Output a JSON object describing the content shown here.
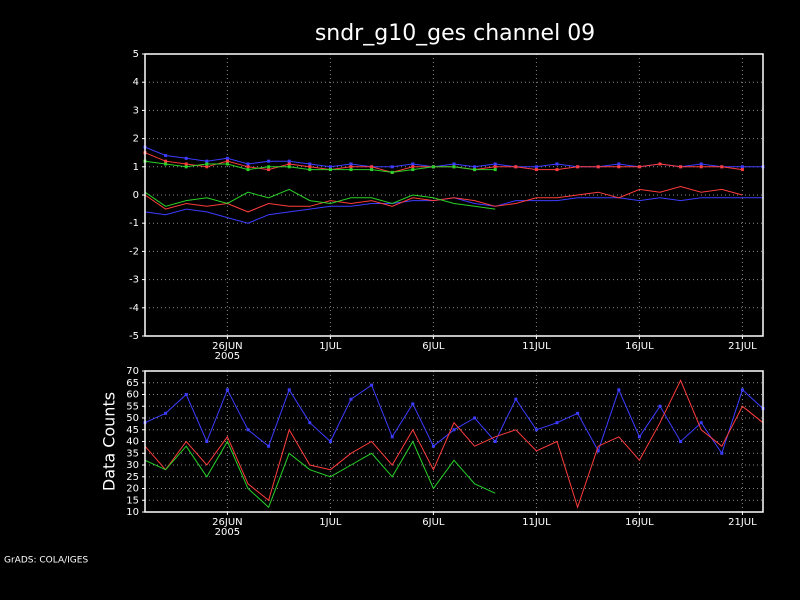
{
  "chart_data": [
    {
      "type": "line",
      "title": "sndr_g10_ges channel 09",
      "grid": true,
      "x_sublabel": "2005",
      "x": [
        "2005-06-22",
        "2005-06-23",
        "2005-06-24",
        "2005-06-25",
        "2005-06-26",
        "2005-06-27",
        "2005-06-28",
        "2005-06-29",
        "2005-06-30",
        "2005-07-01",
        "2005-07-02",
        "2005-07-03",
        "2005-07-04",
        "2005-07-05",
        "2005-07-06",
        "2005-07-07",
        "2005-07-08",
        "2005-07-09",
        "2005-07-10",
        "2005-07-11",
        "2005-07-12",
        "2005-07-13",
        "2005-07-14",
        "2005-07-15",
        "2005-07-16",
        "2005-07-17",
        "2005-07-18",
        "2005-07-19",
        "2005-07-20",
        "2005-07-21",
        "2005-07-22"
      ],
      "xlim": [
        "2005-06-22",
        "2005-07-22"
      ],
      "xticks": [
        {
          "value": "2005-06-26",
          "label": "26JUN"
        },
        {
          "value": "2005-07-01",
          "label": "1JUL"
        },
        {
          "value": "2005-07-06",
          "label": "6JUL"
        },
        {
          "value": "2005-07-11",
          "label": "11JUL"
        },
        {
          "value": "2005-07-16",
          "label": "16JUL"
        },
        {
          "value": "2005-07-21",
          "label": "21JUL"
        }
      ],
      "ylim": [
        -5,
        5
      ],
      "yticks": [
        -5,
        -4,
        -3,
        -2,
        -1,
        0,
        1,
        2,
        3,
        4,
        5
      ],
      "series": [
        {
          "color": "#3c3cff",
          "marker": true,
          "values": [
            1.7,
            1.4,
            1.3,
            1.2,
            1.3,
            1.1,
            1.2,
            1.2,
            1.1,
            1.0,
            1.1,
            1.0,
            1.0,
            1.1,
            1.0,
            1.1,
            1.0,
            1.1,
            1.0,
            1.0,
            1.1,
            1.0,
            1.0,
            1.1,
            1.0,
            1.1,
            1.0,
            1.1,
            1.0,
            1.0,
            1.0
          ]
        },
        {
          "color": "#ff3c3c",
          "marker": true,
          "values": [
            1.5,
            1.2,
            1.1,
            1.0,
            1.2,
            1.0,
            0.9,
            1.1,
            1.0,
            0.9,
            1.0,
            1.0,
            0.8,
            1.0,
            1.0,
            1.0,
            0.9,
            1.0,
            1.0,
            0.9,
            0.9,
            1.0,
            1.0,
            1.0,
            1.0,
            1.1,
            1.0,
            1.0,
            1.0,
            0.9,
            null
          ]
        },
        {
          "color": "#28d228",
          "marker": true,
          "values": [
            1.2,
            1.1,
            1.0,
            1.1,
            1.1,
            0.9,
            1.0,
            1.0,
            0.9,
            0.9,
            0.9,
            0.9,
            0.8,
            0.9,
            1.0,
            1.0,
            0.9,
            0.9,
            null,
            null,
            null,
            null,
            null,
            null,
            null,
            null,
            null,
            null,
            null,
            null,
            null
          ]
        },
        {
          "color": "#3c3cff",
          "marker": false,
          "values": [
            -0.6,
            -0.7,
            -0.5,
            -0.6,
            -0.8,
            -1.0,
            -0.7,
            -0.6,
            -0.5,
            -0.4,
            -0.4,
            -0.3,
            -0.3,
            -0.2,
            -0.2,
            -0.1,
            -0.3,
            -0.4,
            -0.2,
            -0.2,
            -0.2,
            -0.1,
            -0.1,
            -0.1,
            -0.2,
            -0.1,
            -0.2,
            -0.1,
            -0.1,
            -0.1,
            -0.1
          ]
        },
        {
          "color": "#ff3c3c",
          "marker": false,
          "values": [
            0.0,
            -0.5,
            -0.3,
            -0.4,
            -0.3,
            -0.6,
            -0.3,
            -0.4,
            -0.4,
            -0.2,
            -0.3,
            -0.2,
            -0.4,
            -0.1,
            -0.2,
            -0.1,
            -0.2,
            -0.4,
            -0.3,
            -0.1,
            -0.1,
            0.0,
            0.1,
            -0.1,
            0.2,
            0.1,
            0.3,
            0.1,
            0.2,
            0.0,
            null
          ]
        },
        {
          "color": "#28d228",
          "marker": false,
          "values": [
            0.1,
            -0.4,
            -0.2,
            -0.1,
            -0.3,
            0.1,
            -0.1,
            0.2,
            -0.2,
            -0.3,
            -0.1,
            -0.1,
            -0.3,
            0.0,
            -0.1,
            -0.3,
            -0.4,
            -0.5,
            null,
            null,
            null,
            null,
            null,
            null,
            null,
            null,
            null,
            null,
            null,
            null,
            null
          ]
        }
      ]
    },
    {
      "type": "line",
      "ylabel": "Data Counts",
      "grid": true,
      "x_sublabel": "2005",
      "x": [
        "2005-06-22",
        "2005-06-23",
        "2005-06-24",
        "2005-06-25",
        "2005-06-26",
        "2005-06-27",
        "2005-06-28",
        "2005-06-29",
        "2005-06-30",
        "2005-07-01",
        "2005-07-02",
        "2005-07-03",
        "2005-07-04",
        "2005-07-05",
        "2005-07-06",
        "2005-07-07",
        "2005-07-08",
        "2005-07-09",
        "2005-07-10",
        "2005-07-11",
        "2005-07-12",
        "2005-07-13",
        "2005-07-14",
        "2005-07-15",
        "2005-07-16",
        "2005-07-17",
        "2005-07-18",
        "2005-07-19",
        "2005-07-20",
        "2005-07-21",
        "2005-07-22"
      ],
      "xlim": [
        "2005-06-22",
        "2005-07-22"
      ],
      "xticks": [
        {
          "value": "2005-06-26",
          "label": "26JUN"
        },
        {
          "value": "2005-07-01",
          "label": "1JUL"
        },
        {
          "value": "2005-07-06",
          "label": "6JUL"
        },
        {
          "value": "2005-07-11",
          "label": "11JUL"
        },
        {
          "value": "2005-07-16",
          "label": "16JUL"
        },
        {
          "value": "2005-07-21",
          "label": "21JUL"
        }
      ],
      "ylim": [
        10,
        70
      ],
      "yticks": [
        10,
        15,
        20,
        25,
        30,
        35,
        40,
        45,
        50,
        55,
        60,
        65,
        70
      ],
      "series": [
        {
          "color": "#3c3cff",
          "marker": true,
          "values": [
            48,
            52,
            60,
            40,
            62,
            45,
            38,
            62,
            48,
            40,
            58,
            64,
            42,
            56,
            38,
            45,
            50,
            40,
            58,
            45,
            48,
            52,
            36,
            62,
            42,
            55,
            40,
            48,
            35,
            62,
            54
          ]
        },
        {
          "color": "#ff3c3c",
          "marker": false,
          "values": [
            38,
            28,
            40,
            30,
            42,
            22,
            15,
            45,
            30,
            28,
            35,
            40,
            30,
            45,
            28,
            48,
            38,
            42,
            45,
            36,
            40,
            12,
            38,
            42,
            32,
            48,
            66,
            45,
            38,
            55,
            48
          ]
        },
        {
          "color": "#28d228",
          "marker": false,
          "values": [
            32,
            28,
            38,
            25,
            40,
            20,
            12,
            35,
            28,
            25,
            30,
            35,
            25,
            40,
            20,
            32,
            22,
            18,
            null,
            null,
            null,
            null,
            null,
            null,
            null,
            null,
            null,
            null,
            null,
            null,
            null
          ]
        }
      ]
    }
  ],
  "footer": "GrADS: COLA/IGES"
}
